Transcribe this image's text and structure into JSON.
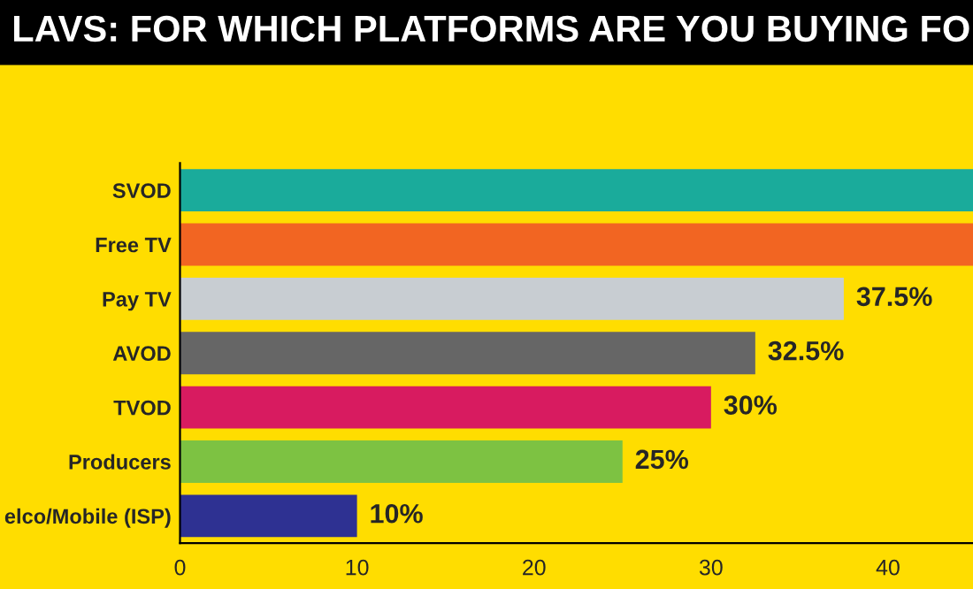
{
  "chart_data": {
    "type": "bar",
    "orientation": "horizontal",
    "title": "LAVS: FOR WHICH PLATFORMS ARE YOU BUYING FO",
    "categories": [
      "SVOD",
      "Free TV",
      "Pay TV",
      "AVOD",
      "TVOD",
      "Producers",
      "elco/Mobile (ISP)"
    ],
    "values": [
      44.8,
      44.8,
      37.5,
      32.5,
      30,
      25,
      10
    ],
    "colors": [
      "#1aab9b",
      "#f26522",
      "#c8cdd2",
      "#666666",
      "#d81b60",
      "#7dc242",
      "#2e3192"
    ],
    "value_labels": [
      null,
      null,
      "37.5%",
      "32.5%",
      "30%",
      "25%",
      "10%"
    ],
    "xlim": [
      0,
      44.8
    ],
    "xticks": [
      0,
      10,
      20,
      30,
      40
    ],
    "grid": false,
    "legend": false
  }
}
